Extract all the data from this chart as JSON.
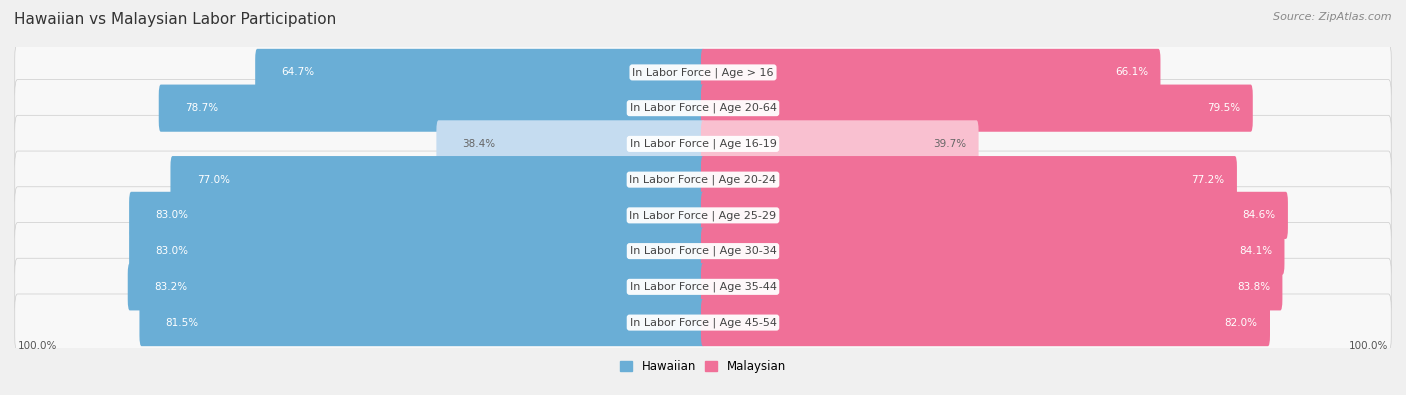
{
  "title": "Hawaiian vs Malaysian Labor Participation",
  "source": "Source: ZipAtlas.com",
  "categories": [
    "In Labor Force | Age > 16",
    "In Labor Force | Age 20-64",
    "In Labor Force | Age 16-19",
    "In Labor Force | Age 20-24",
    "In Labor Force | Age 25-29",
    "In Labor Force | Age 30-34",
    "In Labor Force | Age 35-44",
    "In Labor Force | Age 45-54"
  ],
  "hawaiian_values": [
    64.7,
    78.7,
    38.4,
    77.0,
    83.0,
    83.0,
    83.2,
    81.5
  ],
  "malaysian_values": [
    66.1,
    79.5,
    39.7,
    77.2,
    84.6,
    84.1,
    83.8,
    82.0
  ],
  "hawaiian_color": "#6AAED6",
  "hawaiian_color_light": "#C5DCF0",
  "malaysian_color": "#F07098",
  "malaysian_color_light": "#F9C0D0",
  "max_value": 100.0,
  "background_color": "#f0f0f0",
  "row_bg_color": "#f8f8f8",
  "title_fontsize": 11,
  "source_fontsize": 8,
  "label_fontsize": 8,
  "value_fontsize": 7.5,
  "legend_fontsize": 8.5
}
